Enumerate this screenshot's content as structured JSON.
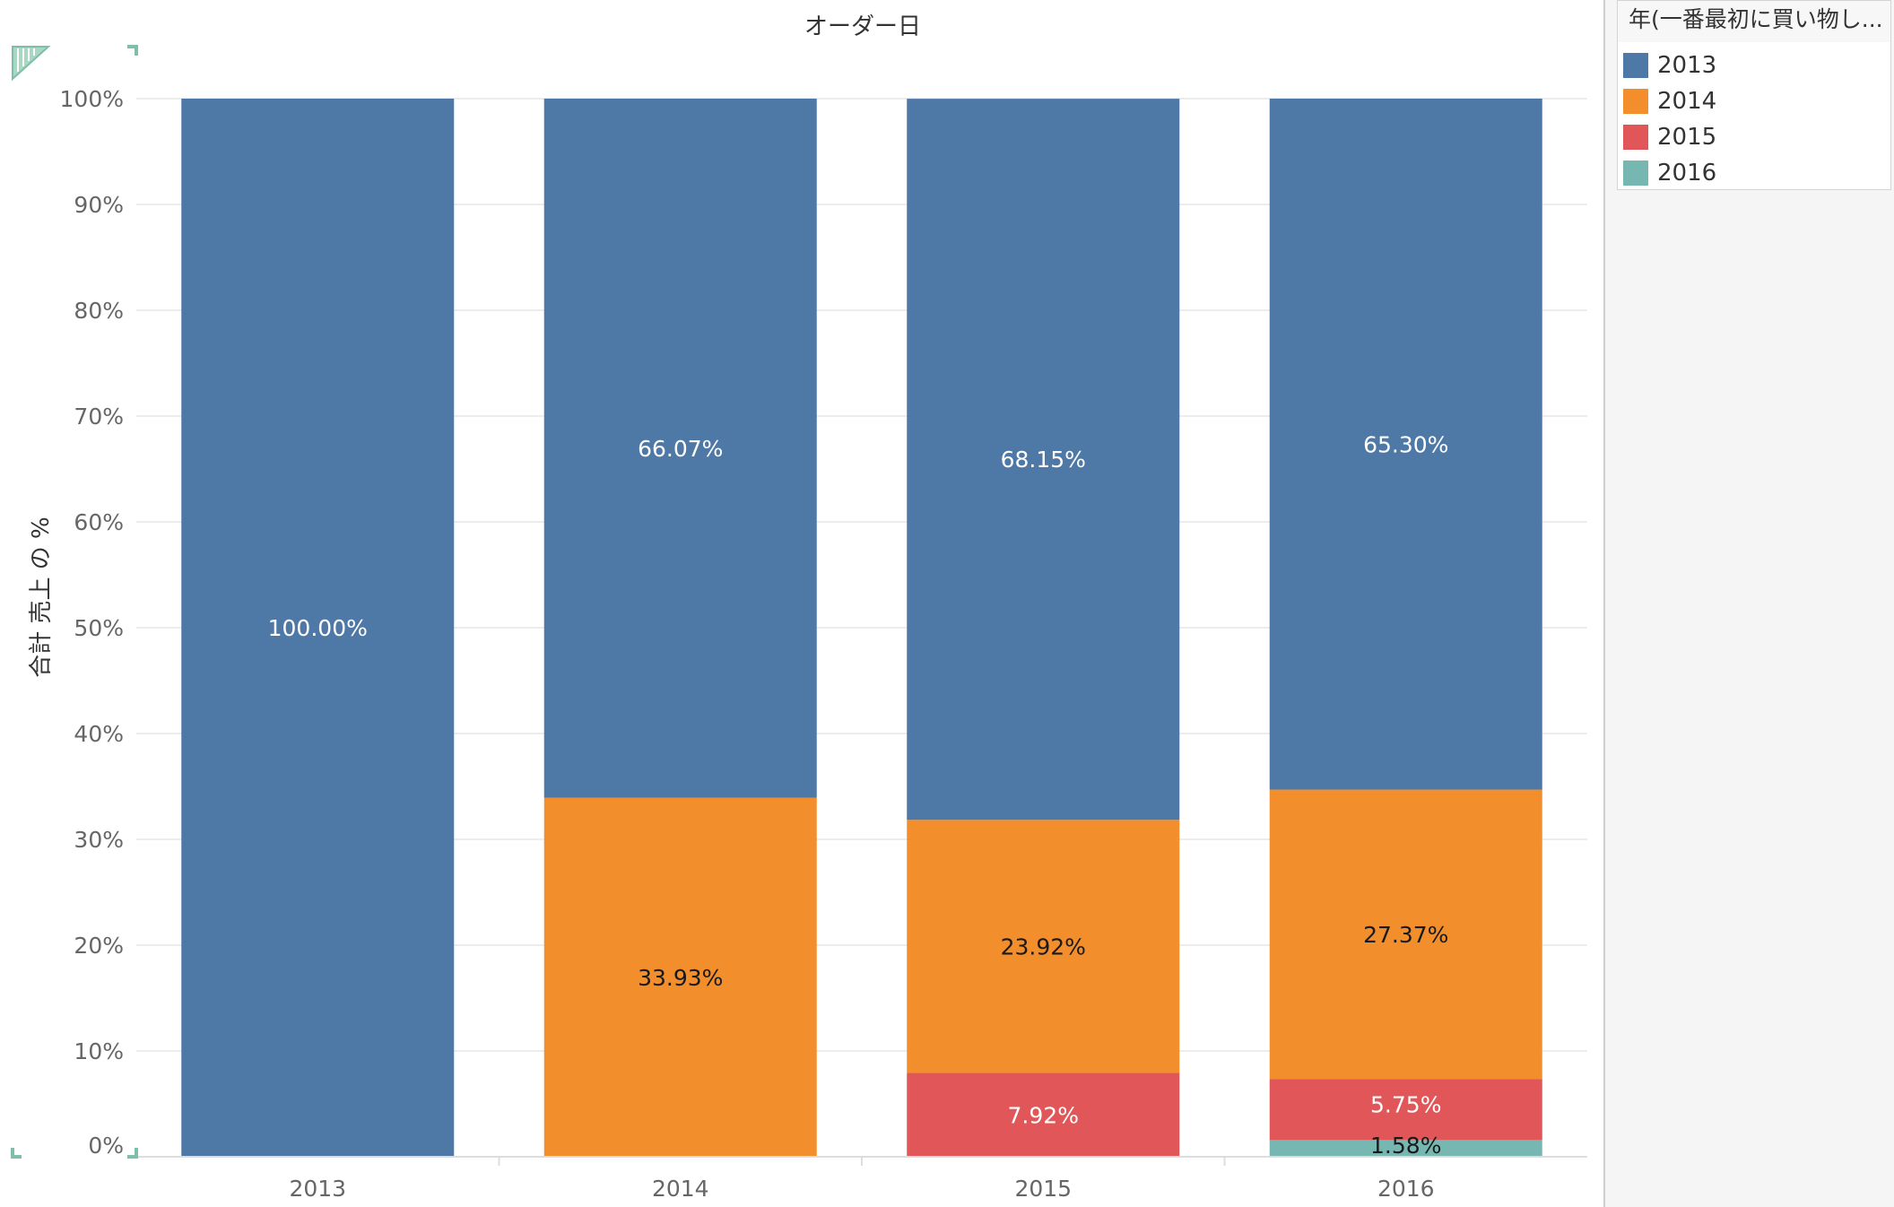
{
  "chart_data": {
    "type": "bar",
    "stacked": true,
    "title": "オーダー日",
    "xlabel": "",
    "ylabel": "合計 売上 の %",
    "categories": [
      "2013",
      "2014",
      "2015",
      "2016"
    ],
    "ylim": [
      0,
      100
    ],
    "yticks": [
      "0%",
      "10%",
      "20%",
      "30%",
      "40%",
      "50%",
      "60%",
      "70%",
      "80%",
      "90%",
      "100%"
    ],
    "series": [
      {
        "name": "2016",
        "color": "#76b7b2",
        "values": [
          0,
          0,
          0,
          1.58
        ],
        "labels": [
          "",
          "",
          "",
          "1.58%"
        ],
        "label_color": "#1a1a1a"
      },
      {
        "name": "2015",
        "color": "#e15759",
        "values": [
          0,
          0,
          7.92,
          5.75
        ],
        "labels": [
          "",
          "",
          "7.92%",
          "5.75%"
        ],
        "label_color": "#ffffff"
      },
      {
        "name": "2014",
        "color": "#f28e2b",
        "values": [
          0,
          33.93,
          23.92,
          27.37
        ],
        "labels": [
          "",
          "33.93%",
          "23.92%",
          "27.37%"
        ],
        "label_color": "#1a1a1a"
      },
      {
        "name": "2013",
        "color": "#4e79a7",
        "values": [
          100,
          66.07,
          68.15,
          65.3
        ],
        "labels": [
          "100.00%",
          "66.07%",
          "68.15%",
          "65.30%"
        ],
        "label_color": "#ffffff"
      }
    ],
    "grid": true
  },
  "legend": {
    "title": "年(一番最初に買い物し...",
    "items": [
      {
        "label": "2013",
        "color": "#4e79a7"
      },
      {
        "label": "2014",
        "color": "#f28e2b"
      },
      {
        "label": "2015",
        "color": "#e15759"
      },
      {
        "label": "2016",
        "color": "#76b7b2"
      }
    ]
  },
  "colors": {
    "axis_text": "#666666",
    "title_text": "#333333",
    "gridline": "#ececec",
    "accent": "#7fbfa8"
  }
}
